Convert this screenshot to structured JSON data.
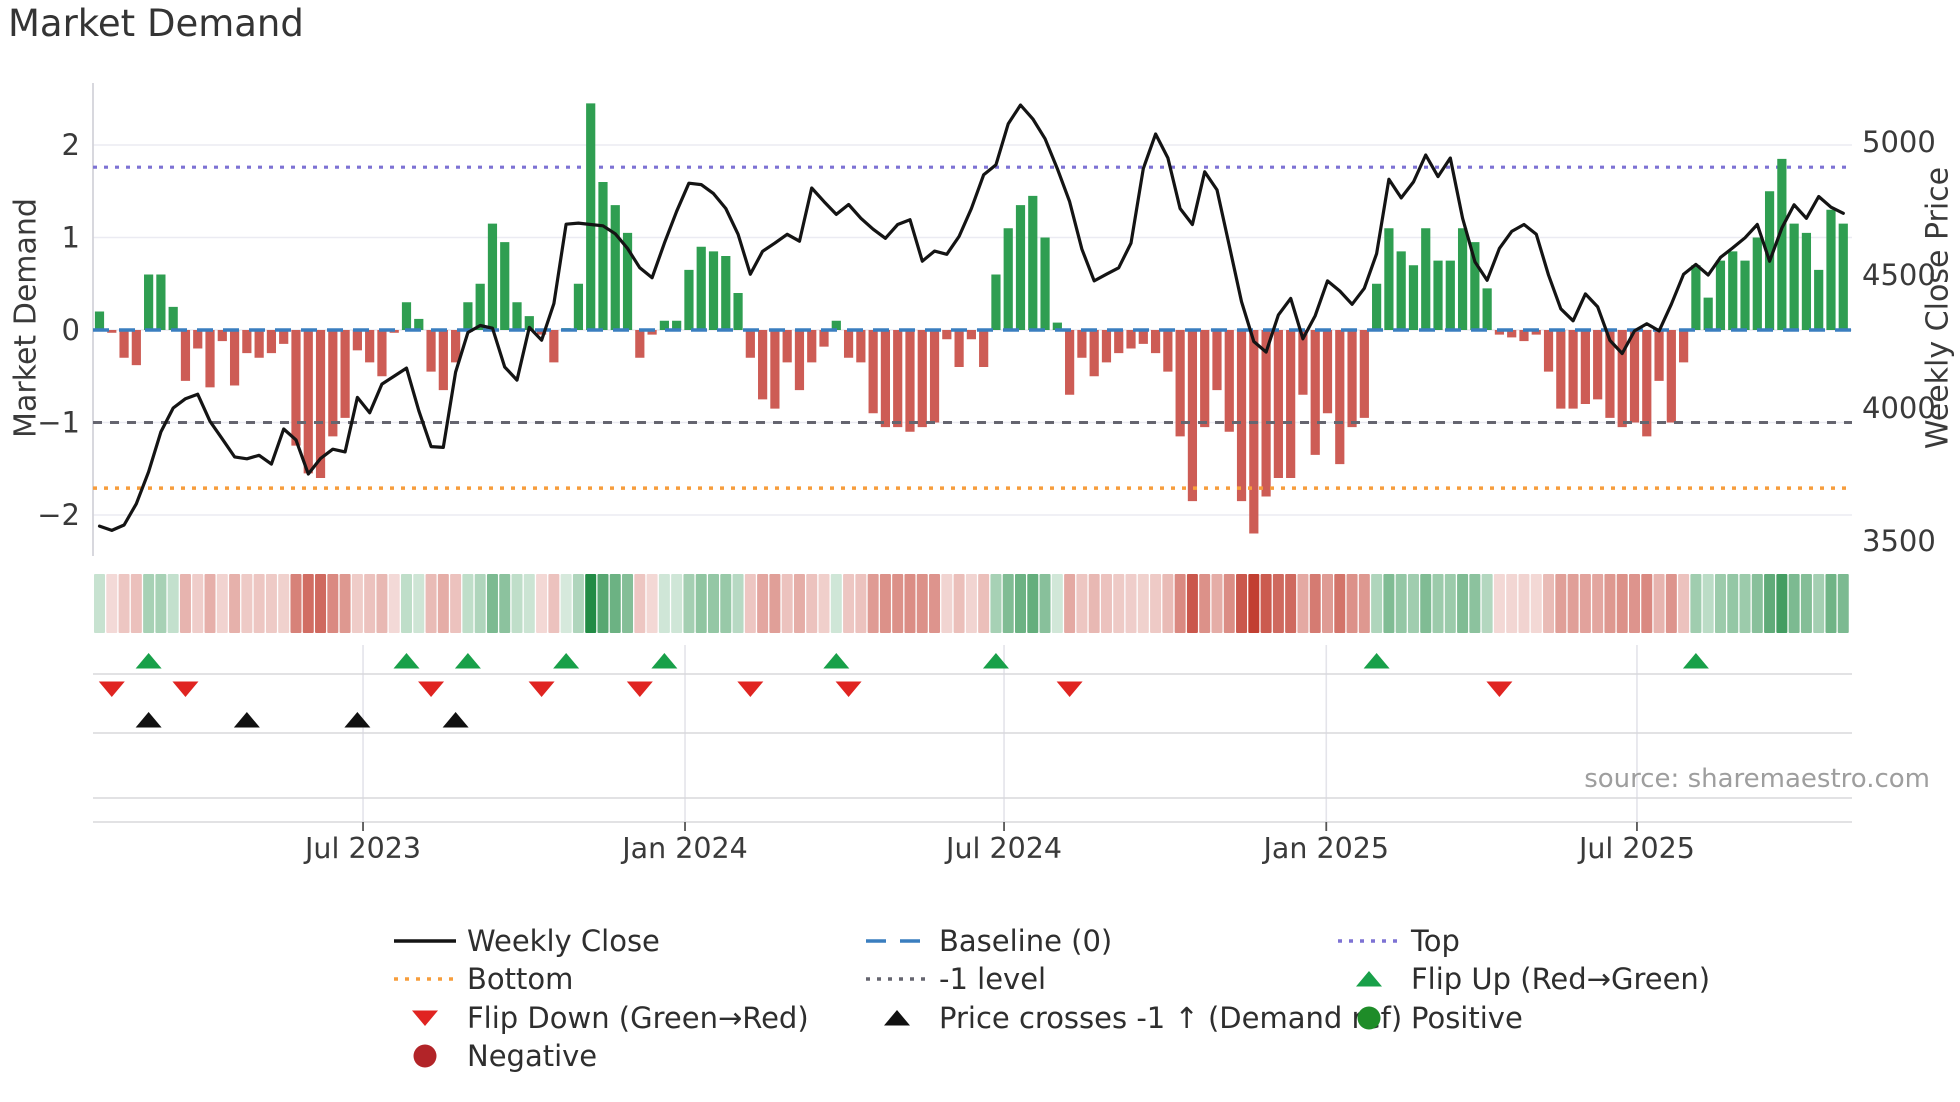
{
  "title": "Market Demand",
  "source_note": "source: sharemaestro.com",
  "axes": {
    "left_label": "Market Demand",
    "right_label": "Weekly Close Price",
    "left_ticks": [
      "2",
      "1",
      "0",
      "−1",
      "−2"
    ],
    "left_tick_values": [
      2,
      1,
      0,
      -1,
      -2
    ],
    "right_ticks": [
      "5000",
      "4500",
      "4000",
      "3500"
    ],
    "right_tick_values": [
      5000,
      4500,
      4000,
      3500
    ],
    "x_ticks": [
      "Jul 2023",
      "Jan 2024",
      "Jul 2024",
      "Jan 2025",
      "Jul 2025"
    ],
    "x_tick_weeks": [
      21.46,
      47.68,
      73.66,
      99.9,
      125.2
    ]
  },
  "colors": {
    "bar_positive": "#2f9e51",
    "bar_negative": "#cd5c55",
    "price_line": "#141414",
    "baseline_blue": "#3a7ebf",
    "top_purple": "#7d72d4",
    "minus1_gray": "#65656f",
    "bottom_orange": "#f79d3c",
    "flip_up_green": "#18a049",
    "flip_down_red": "#e02421",
    "price_cross_black": "#111111",
    "positive_dot": "#1e8c28",
    "negative_dot": "#b22428",
    "gridline": "#ebebf2",
    "panel_line": "#d8d8dc",
    "tick_text": "#3a3a3a"
  },
  "ref_lines": [
    {
      "name": "top",
      "value": 1.76,
      "color": "#7d72d4",
      "dash": "4 7",
      "width": 3.2,
      "behind_bars": true
    },
    {
      "name": "minus1",
      "value": -1.0,
      "color": "#65656f",
      "dash": "9 8",
      "width": 3.0,
      "behind_bars": false
    },
    {
      "name": "bottom",
      "value": -1.71,
      "color": "#f79d3c",
      "dash": "4 7",
      "width": 3.5,
      "behind_bars": false
    },
    {
      "name": "baseline",
      "value": 0.0,
      "color": "#3a7ebf",
      "dash": "16 10",
      "width": 3.5,
      "behind_bars": false
    }
  ],
  "legend": {
    "items": [
      {
        "label": "Weekly Close",
        "swatch": "line",
        "color": "#141414",
        "col": 0,
        "row": 0
      },
      {
        "label": "Bottom",
        "swatch": "dots",
        "color": "#f79d3c",
        "col": 0,
        "row": 1
      },
      {
        "label": "Flip Down (Green→Red)",
        "swatch": "tri-down",
        "color": "#e02421",
        "col": 0,
        "row": 2
      },
      {
        "label": "Negative",
        "swatch": "circle",
        "color": "#b22428",
        "col": 0,
        "row": 3
      },
      {
        "label": "Baseline (0)",
        "swatch": "dashes",
        "color": "#3a7ebf",
        "col": 1,
        "row": 0
      },
      {
        "label": "-1 level",
        "swatch": "dots",
        "color": "#65656f",
        "col": 1,
        "row": 1
      },
      {
        "label": "Price crosses -1 ↑ (Demand ref)",
        "swatch": "tri-up",
        "color": "#111111",
        "col": 1,
        "row": 2
      },
      {
        "label": "Top",
        "swatch": "dots",
        "color": "#7d72d4",
        "col": 2,
        "row": 0
      },
      {
        "label": "Flip Up (Red→Green)",
        "swatch": "tri-up",
        "color": "#18a049",
        "col": 2,
        "row": 1
      },
      {
        "label": "Positive",
        "swatch": "circle",
        "color": "#1e8c28",
        "col": 2,
        "row": 2
      }
    ]
  },
  "chart_data": {
    "type": "combo-bar-line-heatmap",
    "x_unit": "week_index",
    "n_weeks": 143,
    "ylim_left": [
      -2.35,
      2.67
    ],
    "ylim_right": [
      3450,
      5250
    ],
    "grid": "horizontal-only",
    "demand_bars": [
      0.2,
      -0.03,
      -0.3,
      -0.38,
      0.6,
      0.6,
      0.25,
      -0.55,
      -0.2,
      -0.62,
      -0.12,
      -0.6,
      -0.25,
      -0.3,
      -0.25,
      -0.15,
      -1.25,
      -1.55,
      -1.6,
      -1.15,
      -0.95,
      -0.22,
      -0.35,
      -0.5,
      -0.03,
      0.3,
      0.12,
      -0.45,
      -0.65,
      -0.35,
      0.3,
      0.5,
      1.15,
      0.95,
      0.3,
      0.15,
      -0.05,
      -0.35,
      0.02,
      0.5,
      2.45,
      1.6,
      1.35,
      1.05,
      -0.3,
      -0.05,
      0.1,
      0.1,
      0.65,
      0.9,
      0.85,
      0.8,
      0.4,
      -0.3,
      -0.75,
      -0.85,
      -0.35,
      -0.65,
      -0.35,
      -0.18,
      0.1,
      -0.3,
      -0.35,
      -0.9,
      -1.05,
      -1.05,
      -1.1,
      -1.05,
      -1.0,
      -0.1,
      -0.4,
      -0.1,
      -0.4,
      0.6,
      1.1,
      1.35,
      1.45,
      1.0,
      0.08,
      -0.7,
      -0.3,
      -0.5,
      -0.35,
      -0.25,
      -0.2,
      -0.15,
      -0.25,
      -0.45,
      -1.15,
      -1.85,
      -1.05,
      -0.65,
      -1.1,
      -1.85,
      -2.2,
      -1.8,
      -1.6,
      -1.6,
      -0.7,
      -1.35,
      -0.9,
      -1.45,
      -1.05,
      -0.95,
      0.5,
      1.1,
      0.85,
      0.7,
      1.1,
      0.75,
      0.75,
      1.1,
      0.95,
      0.45,
      -0.05,
      -0.08,
      -0.12,
      -0.05,
      -0.45,
      -0.85,
      -0.85,
      -0.8,
      -0.75,
      -0.95,
      -1.05,
      -1.0,
      -1.15,
      -0.55,
      -1.0,
      -0.35,
      0.7,
      0.35,
      0.75,
      0.85,
      0.75,
      1.0,
      1.5,
      1.85,
      1.15,
      1.05,
      0.65,
      1.3,
      1.15
    ],
    "weekly_close": [
      3556,
      3540,
      3560,
      3640,
      3760,
      3910,
      4000,
      4035,
      4052,
      3950,
      3884,
      3816,
      3809,
      3822,
      3789,
      3921,
      3880,
      3752,
      3810,
      3845,
      3835,
      4040,
      3982,
      4090,
      4120,
      4150,
      3990,
      3855,
      3852,
      4135,
      4284,
      4310,
      4300,
      4154,
      4105,
      4303,
      4255,
      4393,
      4691,
      4695,
      4690,
      4685,
      4655,
      4600,
      4527,
      4490,
      4620,
      4740,
      4845,
      4840,
      4806,
      4750,
      4653,
      4503,
      4589,
      4620,
      4653,
      4627,
      4827,
      4776,
      4728,
      4765,
      4713,
      4672,
      4638,
      4690,
      4708,
      4552,
      4590,
      4578,
      4645,
      4750,
      4877,
      4914,
      5068,
      5139,
      5087,
      5012,
      4900,
      4776,
      4597,
      4478,
      4503,
      4527,
      4620,
      4900,
      5030,
      4940,
      4750,
      4690,
      4888,
      4820,
      4610,
      4400,
      4250,
      4210,
      4350,
      4412,
      4260,
      4347,
      4478,
      4440,
      4390,
      4450,
      4580,
      4860,
      4790,
      4850,
      4951,
      4870,
      4940,
      4713,
      4550,
      4480,
      4600,
      4664,
      4690,
      4653,
      4500,
      4373,
      4328,
      4429,
      4380,
      4254,
      4205,
      4290,
      4317,
      4290,
      4390,
      4503,
      4540,
      4500,
      4566,
      4602,
      4640,
      4690,
      4552,
      4677,
      4764,
      4713,
      4795,
      4755,
      4732
    ],
    "heatmap_source": "demand_bars",
    "markers": {
      "flip_up_weeks": [
        4,
        25,
        30,
        38,
        46,
        60,
        73,
        104,
        130
      ],
      "flip_down_weeks": [
        1,
        7,
        27,
        36,
        44,
        53,
        61,
        79,
        114
      ],
      "price_cross_weeks": [
        4,
        12,
        21,
        29
      ]
    }
  }
}
